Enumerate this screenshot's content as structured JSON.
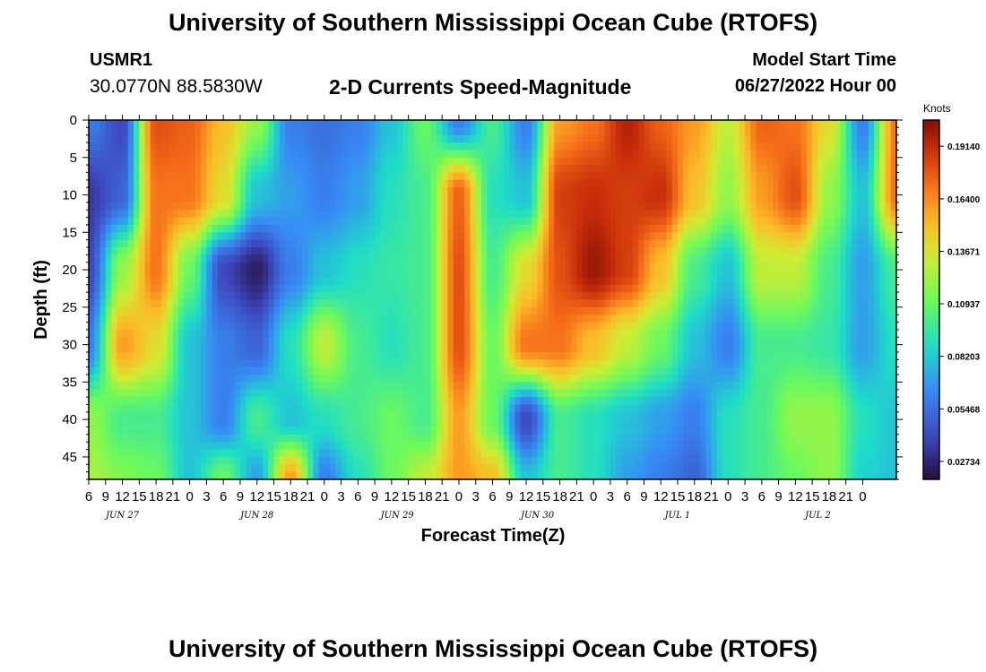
{
  "header": {
    "title": "University of Southern Mississippi Ocean Cube (RTOFS)",
    "station_id": "USMR1",
    "coordinates": "30.0770N  88.5830W",
    "subtitle": "2-D Currents Speed-Magnitude",
    "model_start_label": "Model Start Time",
    "model_start_value": "06/27/2022 Hour 00"
  },
  "footer": {
    "title": "University of Southern Mississippi Ocean Cube (RTOFS)"
  },
  "chart_data": {
    "type": "heatmap",
    "title": "2-D Currents Speed-Magnitude",
    "xlabel": "Forecast Time(Z)",
    "ylabel": "Depth (ft)",
    "colorbar_label": "Knots",
    "x_range_hours": [
      6,
      150
    ],
    "y_range_ft": [
      0,
      48
    ],
    "y_reversed": true,
    "x_tick_labels": [
      "6",
      "9",
      "12",
      "15",
      "18",
      "21",
      "0",
      "3",
      "6",
      "9",
      "12",
      "15",
      "18",
      "21",
      "0",
      "3",
      "6",
      "9",
      "12",
      "15",
      "18",
      "21",
      "0",
      "3",
      "6",
      "9",
      "12",
      "15",
      "18",
      "21",
      "0",
      "3",
      "6",
      "9",
      "12",
      "15",
      "18",
      "21",
      "0",
      "3",
      "6",
      "9",
      "12",
      "15",
      "18",
      "21",
      "0"
    ],
    "y_tick_labels": [
      "0",
      "5",
      "10",
      "15",
      "20",
      "25",
      "30",
      "35",
      "40",
      "45"
    ],
    "y_tick_values": [
      0,
      5,
      10,
      15,
      20,
      25,
      30,
      35,
      40,
      45
    ],
    "date_labels": [
      {
        "text": "JUN 27",
        "hour": 12
      },
      {
        "text": "JUN 28",
        "hour": 36
      },
      {
        "text": "JUN 29",
        "hour": 61
      },
      {
        "text": "JUN 30",
        "hour": 86
      },
      {
        "text": "JUL 1",
        "hour": 111
      },
      {
        "text": "JUL 2",
        "hour": 136
      }
    ],
    "colorbar_ticks": [
      "0.19140",
      "0.16400",
      "0.13671",
      "0.10937",
      "0.08203",
      "0.05468",
      "0.02734"
    ],
    "colorbar_tick_values": [
      0.1914,
      0.164,
      0.13671,
      0.10937,
      0.08203,
      0.05468,
      0.02734
    ],
    "value_range": [
      0.018,
      0.205
    ],
    "depth_levels_ft": [
      0,
      10,
      20,
      30,
      40,
      48
    ],
    "time_hours": [
      6,
      12,
      18,
      24,
      30,
      36,
      42,
      48,
      54,
      60,
      66,
      72,
      78,
      84,
      90,
      96,
      102,
      108,
      114,
      120,
      126,
      132,
      138,
      144,
      150
    ],
    "speed_knots": [
      [
        0.06,
        0.04,
        0.18,
        0.175,
        0.15,
        0.12,
        0.06,
        0.055,
        0.06,
        0.08,
        0.11,
        0.06,
        0.1,
        0.06,
        0.16,
        0.17,
        0.195,
        0.175,
        0.16,
        0.13,
        0.175,
        0.17,
        0.14,
        0.06,
        0.17
      ],
      [
        0.035,
        0.05,
        0.17,
        0.17,
        0.14,
        0.08,
        0.07,
        0.06,
        0.07,
        0.09,
        0.1,
        0.175,
        0.09,
        0.08,
        0.185,
        0.19,
        0.185,
        0.19,
        0.15,
        0.12,
        0.16,
        0.18,
        0.12,
        0.08,
        0.17
      ],
      [
        0.04,
        0.12,
        0.17,
        0.11,
        0.04,
        0.025,
        0.06,
        0.08,
        0.09,
        0.095,
        0.1,
        0.18,
        0.1,
        0.14,
        0.18,
        0.2,
        0.185,
        0.15,
        0.1,
        0.08,
        0.13,
        0.13,
        0.1,
        0.07,
        0.1
      ],
      [
        0.06,
        0.16,
        0.14,
        0.08,
        0.06,
        0.05,
        0.09,
        0.13,
        0.1,
        0.09,
        0.1,
        0.18,
        0.11,
        0.17,
        0.17,
        0.15,
        0.13,
        0.11,
        0.08,
        0.06,
        0.1,
        0.1,
        0.095,
        0.07,
        0.09
      ],
      [
        0.12,
        0.1,
        0.1,
        0.08,
        0.06,
        0.1,
        0.08,
        0.09,
        0.1,
        0.11,
        0.1,
        0.16,
        0.11,
        0.04,
        0.1,
        0.09,
        0.08,
        0.07,
        0.06,
        0.09,
        0.1,
        0.12,
        0.12,
        0.09,
        0.08
      ],
      [
        0.125,
        0.115,
        0.11,
        0.08,
        0.11,
        0.07,
        0.16,
        0.06,
        0.09,
        0.11,
        0.13,
        0.16,
        0.15,
        0.08,
        0.1,
        0.09,
        0.07,
        0.06,
        0.05,
        0.09,
        0.1,
        0.11,
        0.12,
        0.085,
        0.08
      ]
    ]
  }
}
